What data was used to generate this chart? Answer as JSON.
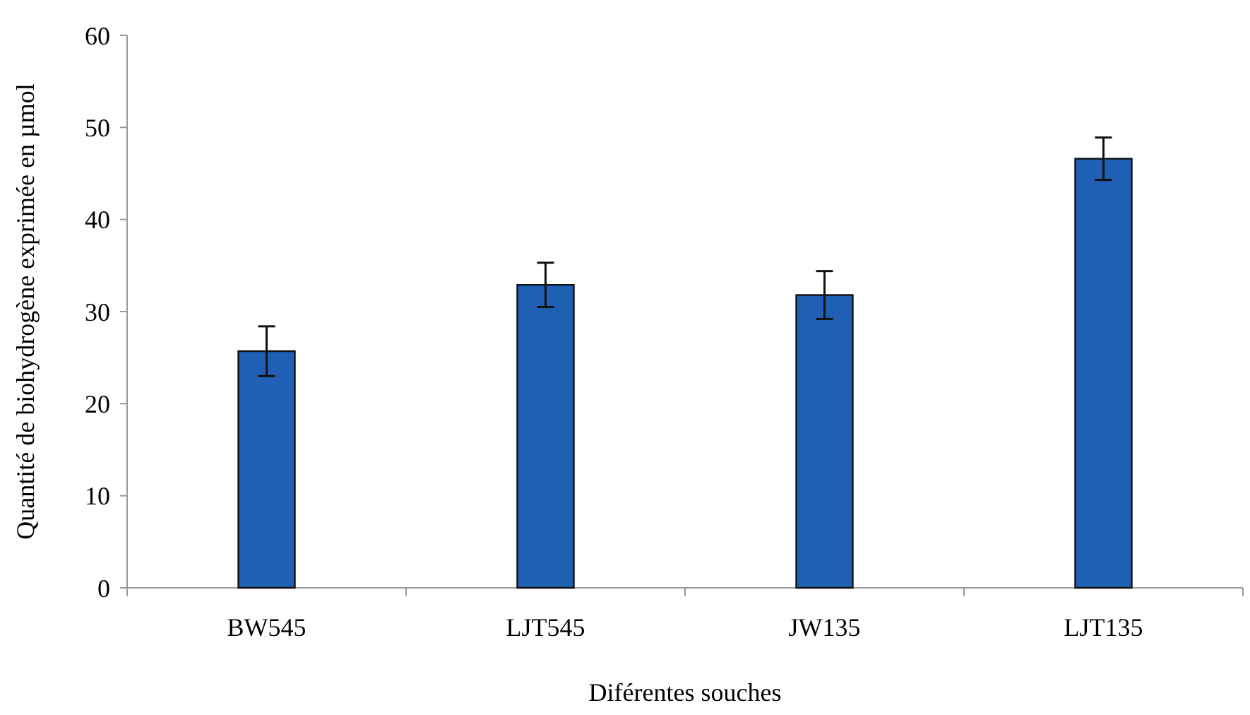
{
  "chart_data": {
    "type": "bar",
    "xlabel": "Diférentes souches",
    "ylabel": "Quantité de biohydrogène exprimée en µmol",
    "categories": [
      "BW545",
      "LJT545",
      "JW135",
      "LJT135"
    ],
    "values": [
      25.7,
      32.9,
      31.8,
      46.6
    ],
    "errors": [
      2.7,
      2.4,
      2.6,
      2.3
    ],
    "color": "#1f5fb4",
    "ylim": [
      0,
      60
    ],
    "yticks": [
      0,
      10,
      20,
      30,
      40,
      50,
      60
    ],
    "grid": false
  }
}
